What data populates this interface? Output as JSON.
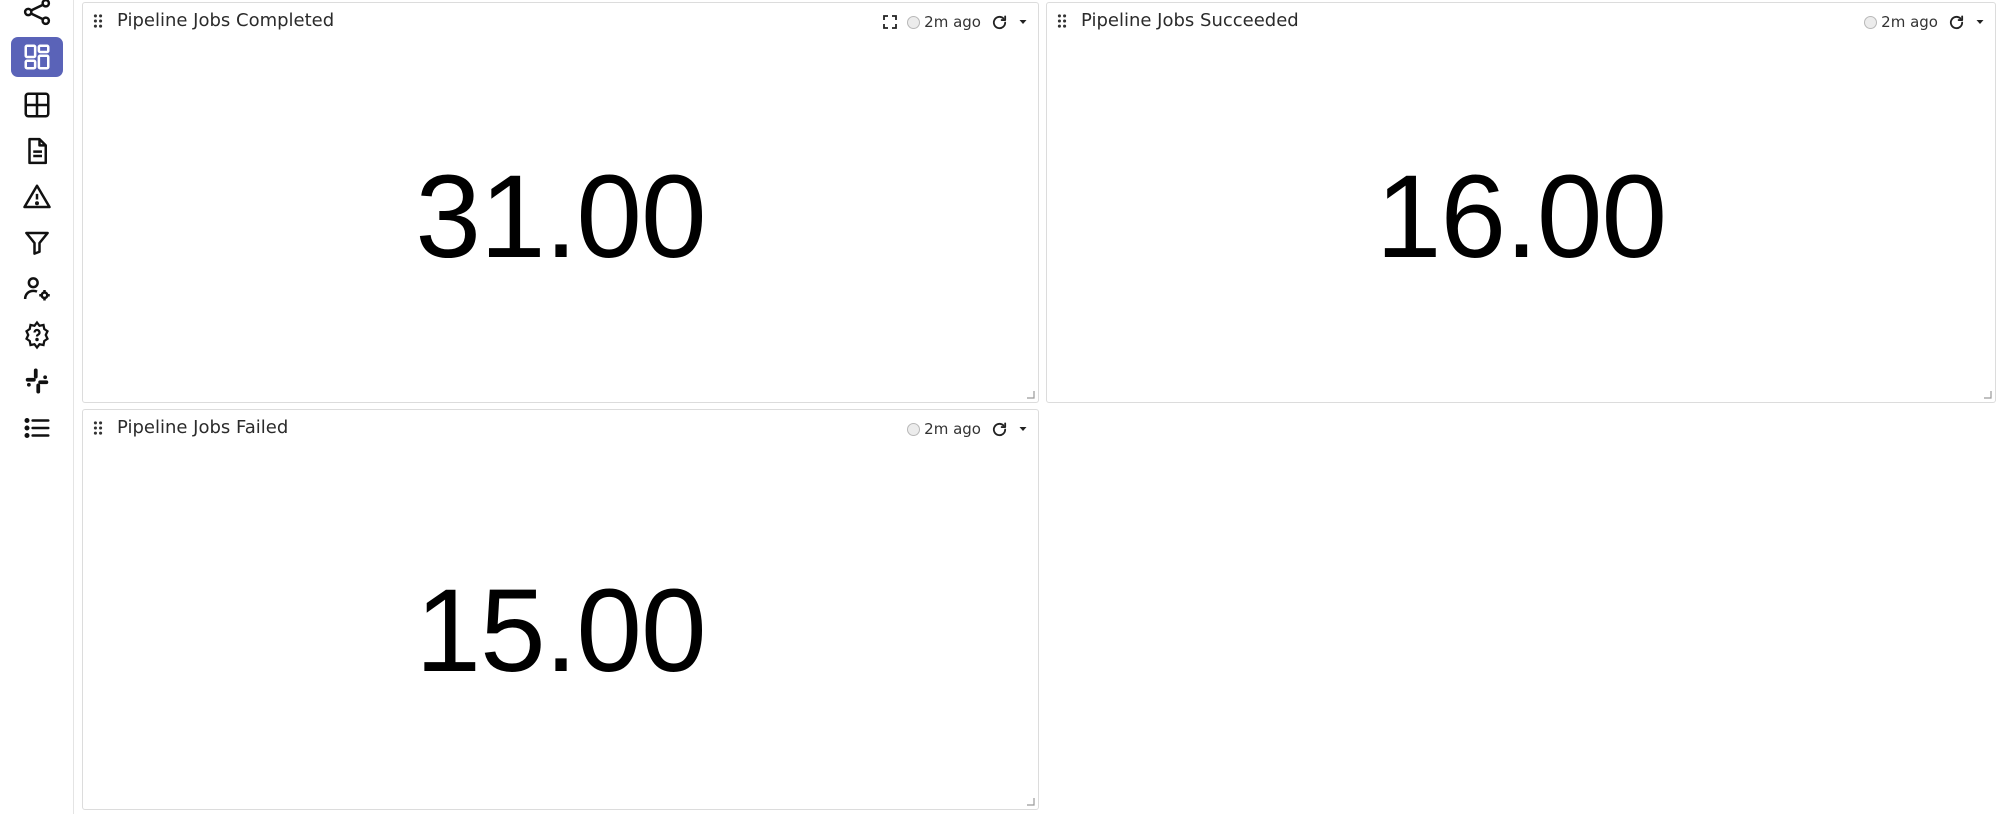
{
  "sidebar": {
    "items": [
      {
        "icon": "share-graph-icon",
        "active": false
      },
      {
        "icon": "dashboard-icon",
        "active": true
      },
      {
        "icon": "grid-table-icon",
        "active": false
      },
      {
        "icon": "document-icon",
        "active": false
      },
      {
        "icon": "warning-triangle-icon",
        "active": false
      },
      {
        "icon": "filter-icon",
        "active": false
      },
      {
        "icon": "user-settings-icon",
        "active": false
      },
      {
        "icon": "help-gear-icon",
        "active": false
      },
      {
        "icon": "slack-icon",
        "active": false
      },
      {
        "icon": "list-icon",
        "active": false
      }
    ],
    "accent_color": "#5a63b8"
  },
  "panels": [
    {
      "title": "Pipeline Jobs Completed",
      "value": "31.00",
      "last_updated": "2m ago",
      "has_fullscreen": true
    },
    {
      "title": "Pipeline Jobs Succeeded",
      "value": "16.00",
      "last_updated": "2m ago",
      "has_fullscreen": false
    },
    {
      "title": "Pipeline Jobs Failed",
      "value": "15.00",
      "last_updated": "2m ago",
      "has_fullscreen": false
    }
  ]
}
